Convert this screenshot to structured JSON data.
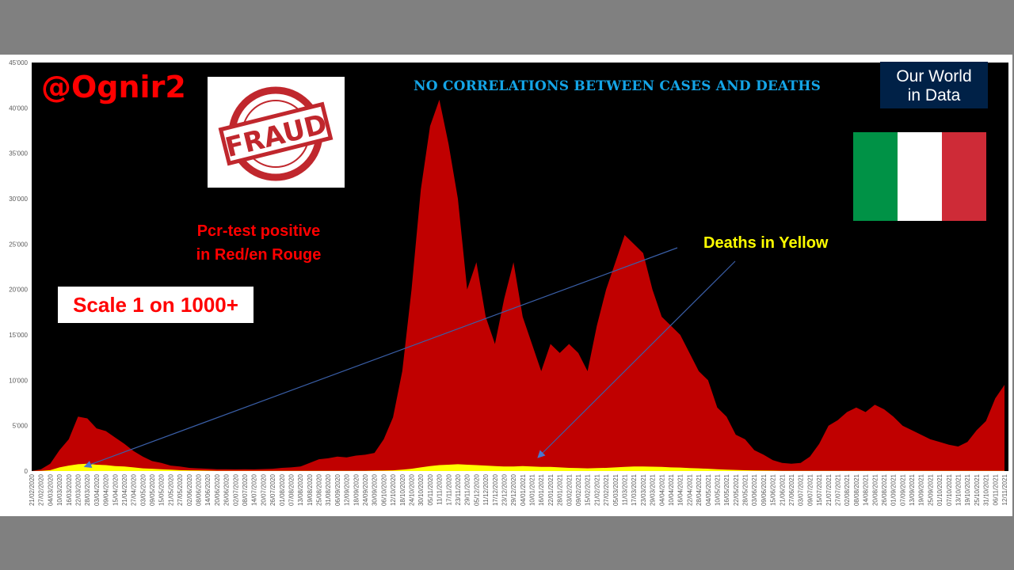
{
  "annotations": {
    "handle": "@Ognir2",
    "stamp": "FRAUD",
    "headline": "NO CORRELATIONS BETWEEN CASES AND DEATHS",
    "source_line1": "Our World",
    "source_line2": "in Data",
    "cases_note_line1": "Pcr-test positive",
    "cases_note_line2": "in Red/en Rouge",
    "scale_note": "Scale 1 on 1000+",
    "deaths_note": "Deaths in Yellow"
  },
  "colors": {
    "cases": "#c00000",
    "deaths": "#ffff00",
    "plot_bg": "#000000",
    "arrow": "#3a5fa8",
    "flag": [
      "#009246",
      "#ffffff",
      "#ce2b37"
    ],
    "owid": "#002147"
  },
  "chart_data": {
    "type": "area",
    "title": "NO CORRELATIONS BETWEEN CASES AND DEATHS",
    "xlabel": "",
    "ylabel": "",
    "ylim": [
      0,
      45000
    ],
    "yticks": [
      "0",
      "5'000",
      "10'000",
      "15'000",
      "20'000",
      "25'000",
      "30'000",
      "35'000",
      "40'000",
      "45'000"
    ],
    "grid": false,
    "x": [
      "21/02/2020",
      "27/02/2020",
      "04/03/2020",
      "10/03/2020",
      "16/03/2020",
      "22/03/2020",
      "28/03/2020",
      "03/04/2020",
      "09/04/2020",
      "15/04/2020",
      "21/04/2020",
      "27/04/2020",
      "03/05/2020",
      "09/05/2020",
      "15/05/2020",
      "21/05/2020",
      "27/05/2020",
      "02/06/2020",
      "08/06/2020",
      "14/06/2020",
      "20/06/2020",
      "26/06/2020",
      "02/07/2020",
      "08/07/2020",
      "14/07/2020",
      "20/07/2020",
      "26/07/2020",
      "01/08/2020",
      "07/08/2020",
      "13/08/2020",
      "19/08/2020",
      "25/08/2020",
      "31/08/2020",
      "06/09/2020",
      "12/09/2020",
      "18/09/2020",
      "24/09/2020",
      "30/09/2020",
      "06/10/2020",
      "12/10/2020",
      "18/10/2020",
      "24/10/2020",
      "30/10/2020",
      "05/11/2020",
      "11/11/2020",
      "17/11/2020",
      "23/11/2020",
      "29/11/2020",
      "05/12/2020",
      "11/12/2020",
      "17/12/2020",
      "23/12/2020",
      "29/12/2020",
      "04/01/2021",
      "10/01/2021",
      "16/01/2021",
      "22/01/2021",
      "28/01/2021",
      "03/02/2021",
      "09/02/2021",
      "15/02/2021",
      "21/02/2021",
      "27/02/2021",
      "05/03/2021",
      "11/03/2021",
      "17/03/2021",
      "23/03/2021",
      "29/03/2021",
      "04/04/2021",
      "10/04/2021",
      "16/04/2021",
      "22/04/2021",
      "28/04/2021",
      "04/05/2021",
      "10/05/2021",
      "16/05/2021",
      "22/05/2021",
      "28/05/2021",
      "03/06/2021",
      "09/06/2021",
      "15/06/2021",
      "21/06/2021",
      "27/06/2021",
      "03/07/2021",
      "09/07/2021",
      "15/07/2021",
      "21/07/2021",
      "27/07/2021",
      "02/08/2021",
      "08/08/2021",
      "14/08/2021",
      "20/08/2021",
      "26/08/2021",
      "01/09/2021",
      "07/09/2021",
      "13/09/2021",
      "19/09/2021",
      "25/09/2021",
      "01/10/2021",
      "07/10/2021",
      "13/10/2021",
      "19/10/2021",
      "25/10/2021",
      "31/10/2021",
      "06/11/2021",
      "12/11/2021"
    ],
    "series": [
      {
        "values": [
          0,
          200,
          800,
          2300,
          3500,
          6000,
          5800,
          4700,
          4400,
          3700,
          3000,
          2200,
          1600,
          1100,
          900,
          600,
          500,
          350,
          300,
          250,
          200,
          200,
          180,
          200,
          180,
          220,
          250,
          350,
          400,
          500,
          900,
          1300,
          1400,
          1600,
          1500,
          1700,
          1800,
          2000,
          3500,
          5900,
          11000,
          20000,
          31000,
          38000,
          40900,
          36000,
          30000,
          20000,
          23000,
          17000,
          14000,
          19000,
          23000,
          17000,
          14000,
          11000,
          14000,
          13000,
          14000,
          13000,
          11000,
          16000,
          20000,
          23000,
          26000,
          25000,
          24000,
          20000,
          17000,
          16000,
          15000,
          13000,
          11000,
          10000,
          7000,
          6000,
          4000,
          3500,
          2300,
          1800,
          1200,
          900,
          800,
          900,
          1600,
          3000,
          5000,
          5600,
          6500,
          7000,
          6500,
          7300,
          6800,
          6000,
          5000,
          4500,
          4000,
          3500,
          3200,
          2900,
          2700,
          3200,
          4500,
          5500,
          8000,
          9500
        ]
      },
      {
        "values": [
          0,
          20,
          100,
          400,
          600,
          750,
          800,
          700,
          650,
          550,
          500,
          400,
          300,
          250,
          200,
          150,
          100,
          80,
          60,
          40,
          30,
          30,
          20,
          20,
          20,
          20,
          20,
          20,
          20,
          20,
          20,
          25,
          25,
          30,
          30,
          30,
          30,
          40,
          50,
          80,
          150,
          250,
          400,
          550,
          650,
          700,
          750,
          700,
          650,
          600,
          550,
          500,
          500,
          550,
          500,
          450,
          450,
          400,
          350,
          320,
          300,
          320,
          350,
          400,
          450,
          500,
          500,
          480,
          450,
          400,
          380,
          330,
          300,
          250,
          200,
          150,
          120,
          90,
          70,
          50,
          40,
          30,
          25,
          20,
          20,
          20,
          20,
          20,
          25,
          30,
          30,
          30,
          30,
          30,
          30,
          30,
          30,
          30,
          30,
          30,
          30,
          30,
          30,
          30,
          30,
          30
        ]
      }
    ]
  }
}
